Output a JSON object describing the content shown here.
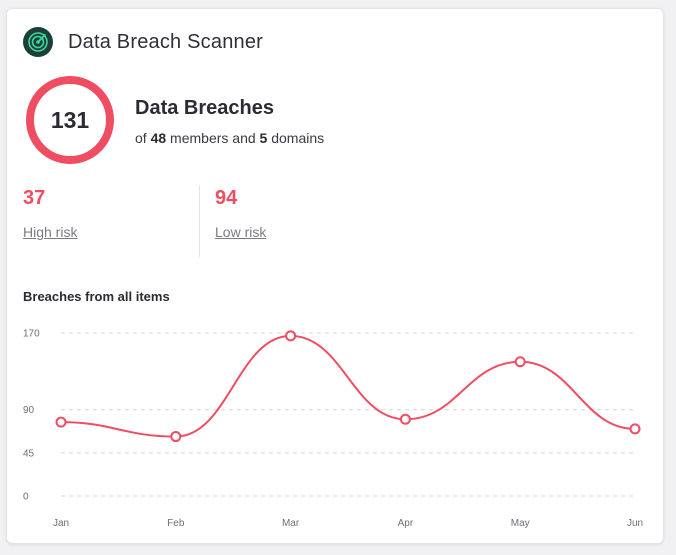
{
  "header": {
    "title": "Data Breach Scanner",
    "icon": "radar-icon"
  },
  "summary": {
    "total": "131",
    "title": "Data Breaches",
    "sub_prefix": "of",
    "members": "48",
    "sub_mid": "members and",
    "domains": "5",
    "sub_suffix": "domains"
  },
  "stats": [
    {
      "value": "37",
      "label": "High risk"
    },
    {
      "value": "94",
      "label": "Low risk"
    }
  ],
  "colors": {
    "accent": "#ef4d62",
    "logo_bg": "#1d3f3a",
    "logo_fg": "#3fd69b"
  },
  "chart_title": "Breaches from all items",
  "chart_data": {
    "type": "line",
    "title": "Breaches from all items",
    "categories": [
      "Jan",
      "Feb",
      "Mar",
      "Apr",
      "May",
      "Jun"
    ],
    "values": [
      77,
      62,
      167,
      80,
      140,
      70
    ],
    "yticks": [
      0,
      45,
      90,
      170
    ],
    "ylim": [
      0,
      170
    ],
    "grid": true,
    "smooth": true
  }
}
